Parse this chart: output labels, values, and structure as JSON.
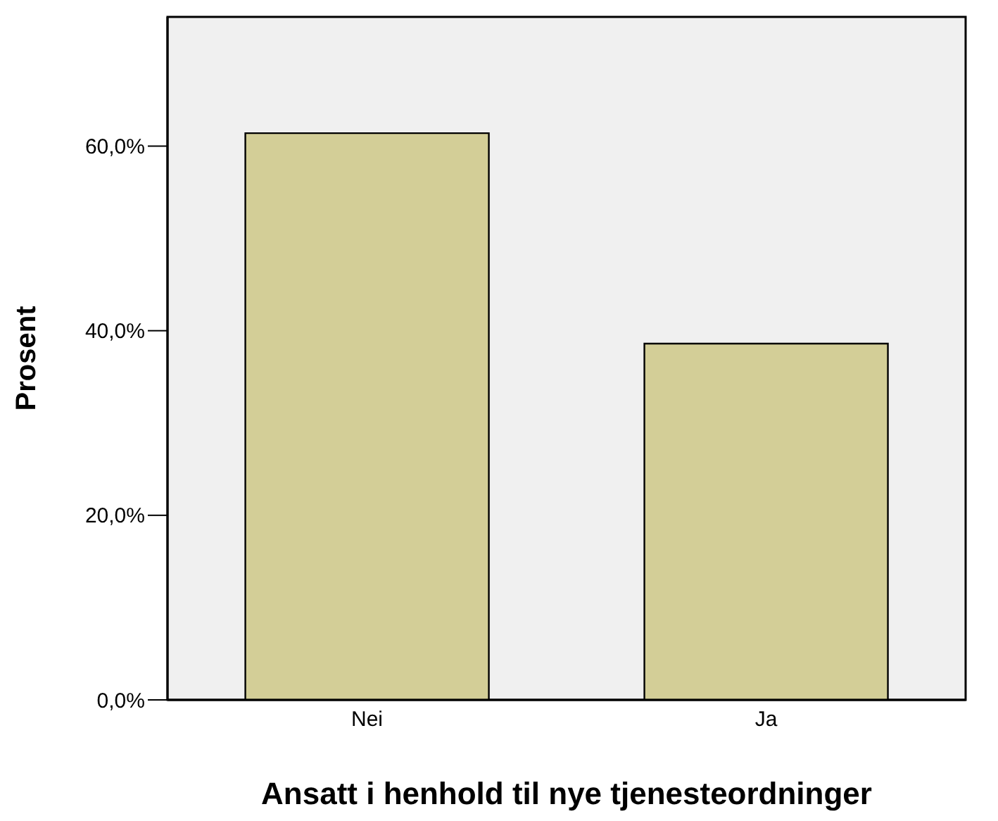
{
  "chart_data": {
    "type": "bar",
    "xlabel": "Ansatt i henhold til nye tjenesteordninger",
    "ylabel": "Prosent",
    "categories": [
      "Nei",
      "Ja"
    ],
    "values": [
      61.4,
      38.6
    ],
    "color": "#d3ce97",
    "ylim": [
      0,
      74
    ],
    "yticks": [
      {
        "value": 0,
        "label": "0,0%"
      },
      {
        "value": 20,
        "label": "20,0%"
      },
      {
        "value": 40,
        "label": "40,0%"
      },
      {
        "value": 60,
        "label": "60,0%"
      }
    ],
    "grid": false
  }
}
